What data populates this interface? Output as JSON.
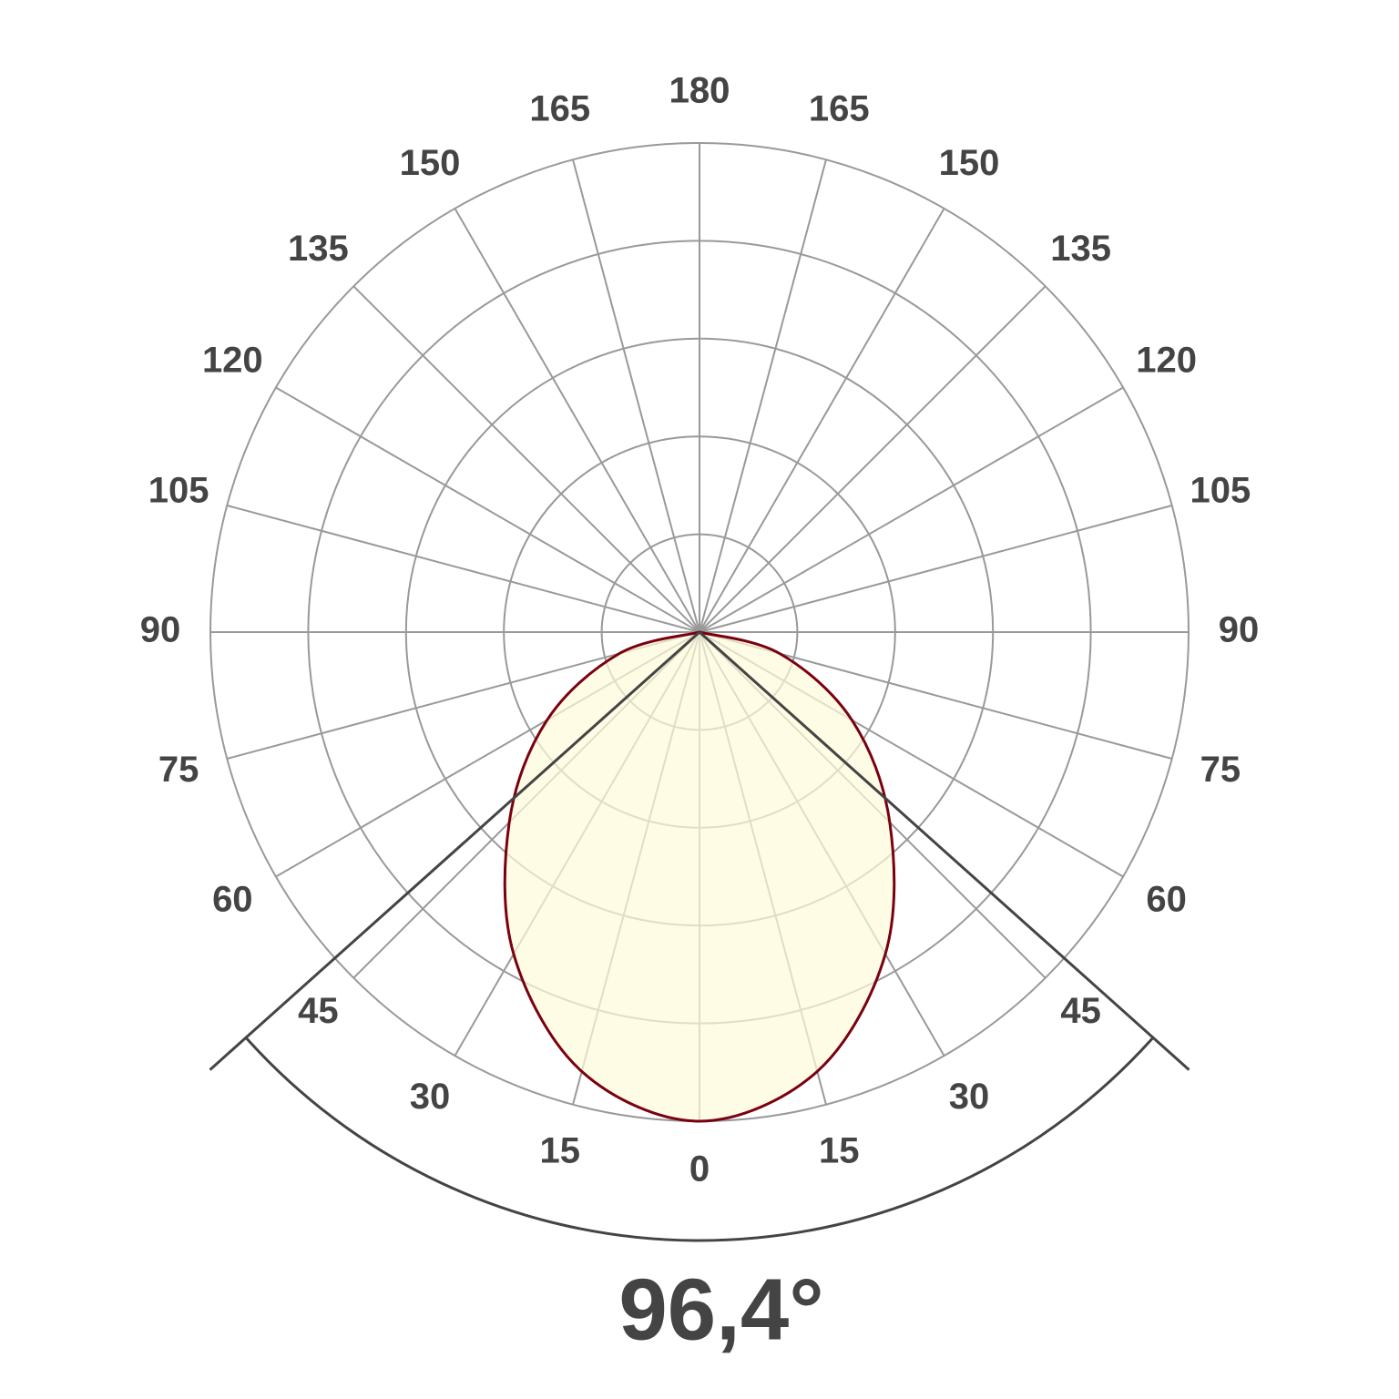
{
  "chart_data": {
    "type": "polar",
    "title": "96,4°",
    "beam_angle": 96.4,
    "theta": [
      -90,
      -75,
      -60,
      -45,
      -30,
      -15,
      0,
      15,
      30,
      45,
      60,
      75,
      90
    ],
    "values": [
      0,
      0.17,
      0.36,
      0.55,
      0.76,
      0.93,
      1.0,
      0.93,
      0.76,
      0.55,
      0.36,
      0.17,
      0
    ],
    "color": "#7a0010",
    "fill": "#fdfbd8",
    "rlim": [
      0,
      1
    ],
    "rticks": [
      0.2,
      0.4,
      0.6,
      0.8,
      1
    ],
    "thetaticks": [
      0,
      15,
      30,
      45,
      60,
      75,
      90,
      105,
      120,
      135,
      150,
      165,
      180
    ],
    "grid": true
  }
}
